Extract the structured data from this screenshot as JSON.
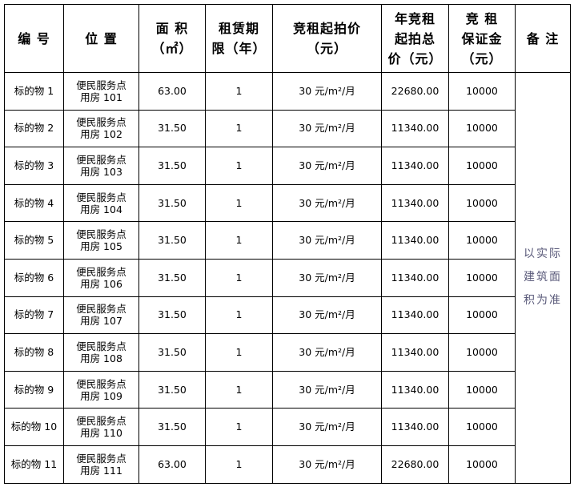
{
  "headers": {
    "id": "编 号",
    "location": "位 置",
    "area_line1": "面 积",
    "area_line2": "（㎡）",
    "term_line1": "租赁期",
    "term_line2": "限（年）",
    "start_price_line1": "竞租起拍价",
    "start_price_line2": "（元）",
    "annual_line1": "年竞租",
    "annual_line2": "起拍总",
    "annual_line3": "价（元）",
    "deposit_line1": "竞 租",
    "deposit_line2": "保证金",
    "deposit_line3": "（元）",
    "remark": "备 注"
  },
  "remark_text": [
    "以实际",
    "建筑面",
    "积为准"
  ],
  "rows": [
    {
      "id": "标的物 1",
      "loc1": "便民服务点",
      "loc2": "用房 101",
      "area": "63.00",
      "term": "1",
      "price": "30 元/m²/月",
      "annual": "22680.00",
      "deposit": "10000"
    },
    {
      "id": "标的物 2",
      "loc1": "便民服务点",
      "loc2": "用房 102",
      "area": "31.50",
      "term": "1",
      "price": "30 元/m²/月",
      "annual": "11340.00",
      "deposit": "10000"
    },
    {
      "id": "标的物 3",
      "loc1": "便民服务点",
      "loc2": "用房 103",
      "area": "31.50",
      "term": "1",
      "price": "30 元/m²/月",
      "annual": "11340.00",
      "deposit": "10000"
    },
    {
      "id": "标的物 4",
      "loc1": "便民服务点",
      "loc2": "用房 104",
      "area": "31.50",
      "term": "1",
      "price": "30 元/m²/月",
      "annual": "11340.00",
      "deposit": "10000"
    },
    {
      "id": "标的物 5",
      "loc1": "便民服务点",
      "loc2": "用房 105",
      "area": "31.50",
      "term": "1",
      "price": "30 元/m²/月",
      "annual": "11340.00",
      "deposit": "10000"
    },
    {
      "id": "标的物 6",
      "loc1": "便民服务点",
      "loc2": "用房 106",
      "area": "31.50",
      "term": "1",
      "price": "30 元/m²/月",
      "annual": "11340.00",
      "deposit": "10000"
    },
    {
      "id": "标的物 7",
      "loc1": "便民服务点",
      "loc2": "用房 107",
      "area": "31.50",
      "term": "1",
      "price": "30 元/m²/月",
      "annual": "11340.00",
      "deposit": "10000"
    },
    {
      "id": "标的物 8",
      "loc1": "便民服务点",
      "loc2": "用房 108",
      "area": "31.50",
      "term": "1",
      "price": "30 元/m²/月",
      "annual": "11340.00",
      "deposit": "10000"
    },
    {
      "id": "标的物 9",
      "loc1": "便民服务点",
      "loc2": "用房 109",
      "area": "31.50",
      "term": "1",
      "price": "30 元/m²/月",
      "annual": "11340.00",
      "deposit": "10000"
    },
    {
      "id": "标的物 10",
      "loc1": "便民服务点",
      "loc2": "用房 110",
      "area": "31.50",
      "term": "1",
      "price": "30 元/m²/月",
      "annual": "11340.00",
      "deposit": "10000"
    },
    {
      "id": "标的物 11",
      "loc1": "便民服务点",
      "loc2": "用房 111",
      "area": "63.00",
      "term": "1",
      "price": "30 元/m²/月",
      "annual": "22680.00",
      "deposit": "10000"
    }
  ]
}
